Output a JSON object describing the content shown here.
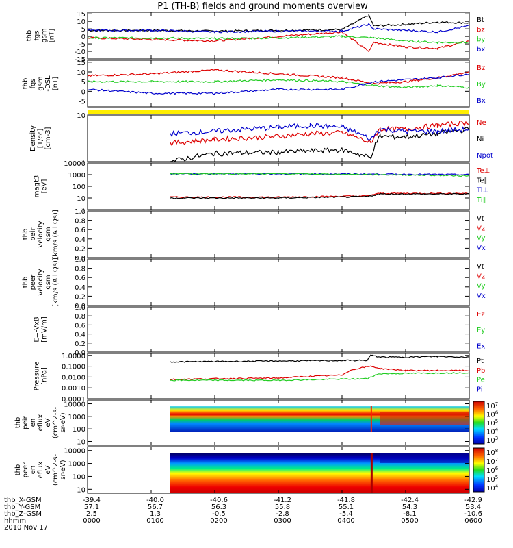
{
  "title": "P1 (TH-B) fields and ground moments overview",
  "footer": {
    "row_labels": [
      "thb_X-GSM",
      "thb_Y-GSM",
      "thb_Z-GSM",
      "hhmm",
      "2010 Nov 17"
    ],
    "x_gsm": [
      "-39.4",
      "-40.0",
      "-40.6",
      "-41.2",
      "-41.8",
      "-42.4",
      "-42.9"
    ],
    "y_gsm": [
      "57.1",
      "56.7",
      "56.3",
      "55.8",
      "55.1",
      "54.3",
      "53.4"
    ],
    "z_gsm": [
      "2.5",
      "1.3",
      "-0.5",
      "-2.8",
      "-5.4",
      "-8.1",
      "-10.6"
    ],
    "hhmm": [
      "0000",
      "0100",
      "0200",
      "0300",
      "0400",
      "0500",
      "0600"
    ]
  },
  "colors": {
    "black": "#000000",
    "red": "#dd0000",
    "green": "#22cc22",
    "blue": "#0000cc",
    "yellow": "#ffee00"
  },
  "chart_data": [
    {
      "type": "line",
      "ylabel": [
        "thb",
        "fgs",
        "gsm",
        "[nT]"
      ],
      "yticks": [
        "15",
        "10",
        "5",
        "0",
        "-5",
        "-10",
        "-15"
      ],
      "ylim": [
        -15,
        16
      ],
      "x_range_hours": [
        0,
        6
      ],
      "series": [
        {
          "name": "Bt",
          "color": "black",
          "points": [
            [
              0,
              4
            ],
            [
              1,
              4
            ],
            [
              2,
              3.5
            ],
            [
              3,
              4
            ],
            [
              4,
              4.5
            ],
            [
              4.42,
              14
            ],
            [
              4.5,
              7
            ],
            [
              5,
              8
            ],
            [
              5.5,
              9.5
            ],
            [
              6,
              9
            ]
          ]
        },
        {
          "name": "bz",
          "color": "red",
          "points": [
            [
              0,
              -1
            ],
            [
              1,
              -2
            ],
            [
              2,
              -3
            ],
            [
              3,
              0
            ],
            [
              4,
              3
            ],
            [
              4.42,
              -10
            ],
            [
              4.5,
              -4
            ],
            [
              5,
              -7
            ],
            [
              5.5,
              -8
            ],
            [
              6,
              -3
            ]
          ]
        },
        {
          "name": "by",
          "color": "green",
          "points": [
            [
              0,
              -1
            ],
            [
              1,
              -1
            ],
            [
              2,
              -1.5
            ],
            [
              3,
              -1
            ],
            [
              4,
              0
            ],
            [
              4.5,
              -1
            ],
            [
              5,
              -3
            ],
            [
              5.5,
              -4
            ],
            [
              6,
              -4
            ]
          ]
        },
        {
          "name": "bx",
          "color": "blue",
          "points": [
            [
              0,
              4
            ],
            [
              1,
              4
            ],
            [
              2,
              3
            ],
            [
              3,
              3.5
            ],
            [
              4,
              3.5
            ],
            [
              4.42,
              8
            ],
            [
              4.5,
              5
            ],
            [
              5,
              4
            ],
            [
              5.5,
              3
            ],
            [
              6,
              7
            ]
          ]
        }
      ]
    },
    {
      "type": "line",
      "ylabel": [
        "thb",
        "fgs",
        "gsm",
        "-DSL",
        "[nT]"
      ],
      "yticks": [
        "15",
        "10",
        "5",
        "0",
        "-5"
      ],
      "ylim": [
        -8,
        16
      ],
      "x_range_hours": [
        0,
        6
      ],
      "series": [
        {
          "name": "Bz",
          "color": "red",
          "points": [
            [
              0,
              8
            ],
            [
              1,
              9
            ],
            [
              2,
              11
            ],
            [
              3,
              9
            ],
            [
              4,
              7
            ],
            [
              4.5,
              4
            ],
            [
              5,
              5
            ],
            [
              5.5,
              7
            ],
            [
              6,
              10
            ]
          ]
        },
        {
          "name": "By",
          "color": "green",
          "points": [
            [
              0,
              5
            ],
            [
              1,
              5
            ],
            [
              2,
              5
            ],
            [
              3,
              6
            ],
            [
              4,
              5
            ],
            [
              4.5,
              3
            ],
            [
              5,
              2
            ],
            [
              5.5,
              3
            ],
            [
              6,
              2
            ]
          ]
        },
        {
          "name": "Bx",
          "color": "blue",
          "points": [
            [
              0,
              1
            ],
            [
              1,
              -1
            ],
            [
              2,
              -1
            ],
            [
              3,
              1
            ],
            [
              4,
              1
            ],
            [
              4.5,
              5
            ],
            [
              5,
              6
            ],
            [
              5.5,
              7
            ],
            [
              6,
              9
            ]
          ]
        }
      ]
    },
    {
      "type": "line",
      "ylabel": [
        "Density",
        "[1/cc]",
        "[cm-3]"
      ],
      "yticks": [
        "10",
        "1"
      ],
      "yscale": "log",
      "ylim": [
        1,
        10
      ],
      "x_range_hours": [
        1.3,
        6
      ],
      "series": [
        {
          "name": "Ne",
          "color": "red",
          "points": [
            [
              1.3,
              2.5
            ],
            [
              2,
              3
            ],
            [
              3,
              3.5
            ],
            [
              3.5,
              4
            ],
            [
              4,
              4.2
            ],
            [
              4.45,
              2.5
            ],
            [
              4.6,
              5
            ],
            [
              5,
              5
            ],
            [
              5.5,
              6
            ],
            [
              6,
              7
            ]
          ]
        },
        {
          "name": "Ni",
          "color": "black",
          "points": [
            [
              1.3,
              1
            ],
            [
              2,
              1.5
            ],
            [
              3,
              1.6
            ],
            [
              4,
              1.8
            ],
            [
              4.45,
              1.2
            ],
            [
              4.6,
              3.5
            ],
            [
              5,
              3.4
            ],
            [
              5.5,
              4
            ],
            [
              6,
              5
            ]
          ]
        },
        {
          "name": "Npot",
          "color": "blue",
          "points": [
            [
              1.3,
              4
            ],
            [
              2,
              4.5
            ],
            [
              3,
              5.5
            ],
            [
              3.5,
              6
            ],
            [
              4,
              5.5
            ],
            [
              4.45,
              3
            ],
            [
              4.6,
              5
            ],
            [
              5,
              4.5
            ],
            [
              5.5,
              4.5
            ],
            [
              6,
              5
            ]
          ]
        }
      ]
    },
    {
      "type": "line",
      "ylabel": [
        "magt3",
        "[eV]"
      ],
      "yticks": [
        "10000",
        "1000",
        "100",
        "10",
        "1"
      ],
      "yscale": "log",
      "ylim": [
        1,
        10000
      ],
      "x_range_hours": [
        1.3,
        6
      ],
      "series": [
        {
          "name": "Te⊥",
          "color": "red",
          "points": [
            [
              1.3,
              12
            ],
            [
              3,
              12
            ],
            [
              4.4,
              15
            ],
            [
              4.6,
              25
            ],
            [
              6,
              25
            ]
          ]
        },
        {
          "name": "Te∥",
          "color": "black",
          "points": [
            [
              1.3,
              10
            ],
            [
              3,
              10
            ],
            [
              4.4,
              13
            ],
            [
              4.6,
              22
            ],
            [
              6,
              22
            ]
          ]
        },
        {
          "name": "Ti⊥",
          "color": "blue",
          "points": [
            [
              1.3,
              1200
            ],
            [
              3,
              1200
            ],
            [
              4.6,
              1100
            ],
            [
              6,
              1000
            ]
          ]
        },
        {
          "name": "Ti∥",
          "color": "green",
          "points": [
            [
              1.3,
              1200
            ],
            [
              3,
              1200
            ],
            [
              4.6,
              1000
            ],
            [
              6,
              800
            ]
          ]
        }
      ]
    },
    {
      "type": "line",
      "ylabel": [
        "thb",
        "peir",
        "velocity",
        "gsm",
        "[km/s (All Qs)]"
      ],
      "yticks": [
        "1.0",
        "0.8",
        "0.6",
        "0.4",
        "0.2",
        "0.0"
      ],
      "ylim": [
        0,
        1
      ],
      "series": [
        {
          "name": "Vt"
        },
        {
          "name": "Vz"
        },
        {
          "name": "Vy"
        },
        {
          "name": "Vx"
        }
      ]
    },
    {
      "type": "line",
      "ylabel": [
        "thb",
        "peer",
        "velocity",
        "gsm",
        "[km/s (All Qs)]"
      ],
      "yticks": [
        "1.0",
        "0.8",
        "0.6",
        "0.4",
        "0.2",
        "0.0"
      ],
      "ylim": [
        0,
        1
      ],
      "series": [
        {
          "name": "Vt"
        },
        {
          "name": "Vz"
        },
        {
          "name": "Vy"
        },
        {
          "name": "Vx"
        }
      ]
    },
    {
      "type": "line",
      "ylabel": [
        "E=-VxB",
        "[mV/m]"
      ],
      "yticks": [
        "1.0",
        "0.8",
        "0.6",
        "0.4",
        "0.2",
        "0.0"
      ],
      "ylim": [
        0,
        1
      ],
      "series": [
        {
          "name": "Ez"
        },
        {
          "name": "Ey"
        },
        {
          "name": "Ex"
        }
      ]
    },
    {
      "type": "line",
      "ylabel": [
        "Pressure",
        "[nPa]"
      ],
      "yticks": [
        "1.0000",
        "0.1000",
        "0.0100",
        "0.0010",
        "0.0001"
      ],
      "yscale": "log",
      "ylim": [
        0.0001,
        1.5
      ],
      "x_range_hours": [
        1.3,
        6
      ],
      "series": [
        {
          "name": "Pt",
          "color": "black",
          "points": [
            [
              1.3,
              0.25
            ],
            [
              3,
              0.3
            ],
            [
              4.4,
              0.35
            ],
            [
              4.45,
              1
            ],
            [
              4.6,
              0.7
            ],
            [
              5,
              0.7
            ],
            [
              5.5,
              0.8
            ],
            [
              6,
              0.7
            ]
          ]
        },
        {
          "name": "Pb",
          "color": "red",
          "points": [
            [
              1.3,
              0.006
            ],
            [
              2,
              0.007
            ],
            [
              3,
              0.008
            ],
            [
              4,
              0.015
            ],
            [
              4.45,
              0.1
            ],
            [
              4.6,
              0.06
            ],
            [
              5,
              0.04
            ],
            [
              5.5,
              0.04
            ],
            [
              6,
              0.04
            ]
          ]
        },
        {
          "name": "Pe",
          "color": "green",
          "points": [
            [
              1.3,
              0.005
            ],
            [
              3,
              0.005
            ],
            [
              4.4,
              0.007
            ],
            [
              4.6,
              0.02
            ],
            [
              6,
              0.025
            ]
          ]
        },
        {
          "name": "Pi",
          "color": "blue",
          "points": []
        }
      ]
    },
    {
      "type": "heatmap",
      "ylabel": [
        "thb",
        "peir",
        "en",
        "eflux",
        "eV",
        "(cm^2-s-",
        "sr-eV)"
      ],
      "yticks": [
        "10000",
        "1000",
        "100",
        "10"
      ],
      "ylim": [
        5,
        20000
      ],
      "yscale": "log",
      "x_range_hours": [
        1.3,
        6
      ],
      "colorbar_ticks": [
        "10^7",
        "10^6",
        "10^5",
        "10^4",
        "10^3"
      ]
    },
    {
      "type": "heatmap",
      "ylabel": [
        "thb",
        "peer",
        "en",
        "eflux",
        "eV",
        "(cm^2-s-",
        "sr-eV)"
      ],
      "yticks": [
        "10000",
        "1000",
        "100",
        "10"
      ],
      "ylim": [
        5,
        20000
      ],
      "yscale": "log",
      "x_range_hours": [
        1.3,
        6
      ],
      "colorbar_ticks": [
        "10^8",
        "10^7",
        "10^6",
        "10^5",
        "10^4"
      ]
    }
  ]
}
